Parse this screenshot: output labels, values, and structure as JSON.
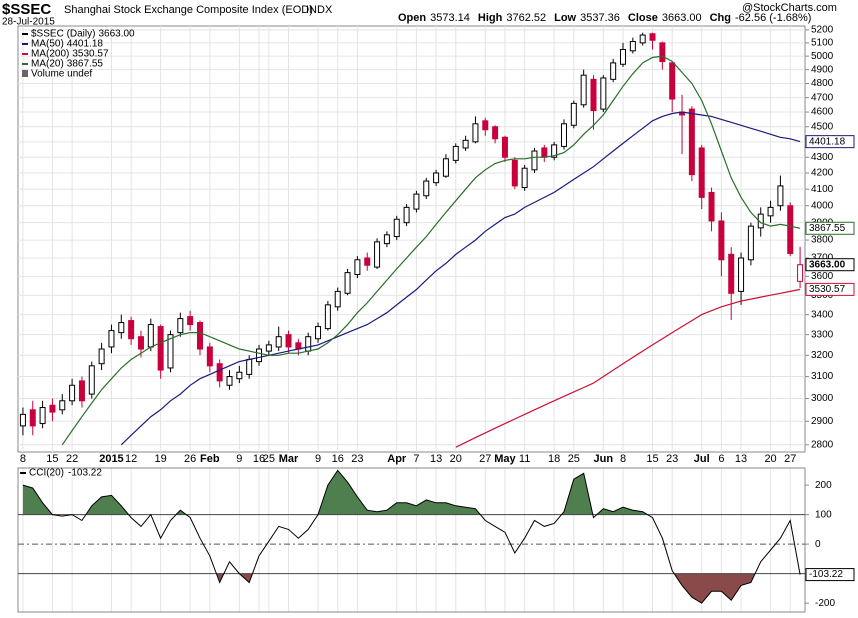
{
  "header": {
    "symbol": "$SSEC",
    "name": "Shanghai Stock Exchange Composite Index (EOD)",
    "exchange": "INDX",
    "date": "28-Jul-2015",
    "quote": [
      {
        "label": "Open",
        "value": "3573.14"
      },
      {
        "label": "High",
        "value": "3762.52"
      },
      {
        "label": "Low",
        "value": "3537.36"
      },
      {
        "label": "Close",
        "value": "3663.00"
      },
      {
        "label": "Chg",
        "value": "-62.56 (-1.68%)"
      }
    ],
    "source": "@StockCharts.com"
  },
  "chart_data": [
    {
      "type": "candlestick",
      "log_scale": true,
      "grid": true,
      "categories": [
        "8",
        null,
        null,
        "15",
        null,
        "22",
        null,
        null,
        null,
        "2015",
        null,
        "12",
        null,
        null,
        "19",
        null,
        null,
        "26",
        null,
        "Feb",
        null,
        null,
        "9",
        null,
        "16",
        "25",
        null,
        "Mar",
        null,
        null,
        "9",
        null,
        "16",
        null,
        "23",
        null,
        null,
        null,
        "Apr",
        null,
        "7",
        null,
        "13",
        null,
        "20",
        null,
        null,
        "27",
        null,
        "May",
        null,
        "11",
        null,
        null,
        "18",
        null,
        "25",
        null,
        null,
        "Jun",
        null,
        "8",
        null,
        null,
        "15",
        null,
        "23",
        null,
        null,
        "Jul",
        null,
        "6",
        null,
        "13",
        null,
        null,
        "20",
        null,
        "27",
        null
      ],
      "name": "$SSEC (Daily)",
      "last_label": "3663.00",
      "up_color": "#000000",
      "down_color": "#c8003c",
      "volume_note": "Volume undef",
      "open": [
        2880,
        2950,
        2890,
        2970,
        2950,
        2990,
        3080,
        3020,
        3160,
        3240,
        3310,
        3370,
        3290,
        3240,
        3340,
        3140,
        3310,
        3390,
        3360,
        3240,
        3160,
        3060,
        3090,
        3110,
        3170,
        3220,
        3240,
        3300,
        3260,
        3220,
        3280,
        3330,
        3440,
        3510,
        3610,
        3700,
        3650,
        3780,
        3820,
        3900,
        3980,
        4060,
        4140,
        4180,
        4280,
        4360,
        4400,
        4540,
        4500,
        4430,
        4280,
        4110,
        4220,
        4360,
        4300,
        4370,
        4510,
        4650,
        4830,
        4620,
        4830,
        4940,
        5040,
        5100,
        5170,
        5100,
        4950,
        4600,
        4620,
        4360,
        4080,
        3910,
        3720,
        3520,
        3690,
        3870,
        3940,
        4000,
        4000,
        3573.14
      ],
      "high": [
        2960,
        2990,
        2990,
        3000,
        3020,
        3090,
        3100,
        3170,
        3260,
        3350,
        3400,
        3390,
        3320,
        3380,
        3350,
        3320,
        3410,
        3420,
        3370,
        3260,
        3180,
        3130,
        3150,
        3200,
        3250,
        3270,
        3340,
        3320,
        3280,
        3310,
        3360,
        3470,
        3540,
        3640,
        3710,
        3730,
        3810,
        3850,
        3940,
        4010,
        4090,
        4170,
        4220,
        4320,
        4390,
        4440,
        4570,
        4560,
        4510,
        4440,
        4300,
        4250,
        4360,
        4380,
        4400,
        4550,
        4680,
        4900,
        4860,
        4860,
        4980,
        5100,
        5140,
        5178,
        5178,
        5110,
        4960,
        4720,
        4640,
        4380,
        4110,
        3960,
        3760,
        3730,
        3900,
        3990,
        4030,
        4184,
        4020,
        3762.52
      ],
      "low": [
        2840,
        2840,
        2870,
        2900,
        2930,
        2970,
        2960,
        3000,
        3130,
        3210,
        3280,
        3250,
        3190,
        3220,
        3090,
        3120,
        3290,
        3320,
        3200,
        3120,
        3050,
        3040,
        3070,
        3090,
        3150,
        3200,
        3220,
        3210,
        3200,
        3200,
        3260,
        3320,
        3420,
        3500,
        3590,
        3630,
        3640,
        3760,
        3800,
        3880,
        3960,
        4040,
        4120,
        4170,
        4260,
        4340,
        4390,
        4440,
        4390,
        4270,
        4100,
        4090,
        4200,
        4270,
        4280,
        4350,
        4490,
        4630,
        4480,
        4600,
        4810,
        4920,
        5020,
        5080,
        5050,
        4900,
        4600,
        4320,
        4150,
        3980,
        3850,
        3600,
        3373,
        3450,
        3660,
        3820,
        3900,
        3970,
        3710,
        3537.36
      ],
      "close": [
        2930,
        2880,
        2960,
        2940,
        2990,
        3060,
        2990,
        3150,
        3230,
        3320,
        3360,
        3280,
        3230,
        3350,
        3130,
        3300,
        3380,
        3350,
        3230,
        3150,
        3080,
        3100,
        3120,
        3180,
        3230,
        3250,
        3290,
        3240,
        3230,
        3290,
        3340,
        3450,
        3520,
        3620,
        3690,
        3660,
        3790,
        3830,
        3920,
        3990,
        4070,
        4150,
        4200,
        4290,
        4370,
        4410,
        4520,
        4480,
        4420,
        4300,
        4120,
        4230,
        4340,
        4300,
        4380,
        4520,
        4660,
        4860,
        4610,
        4840,
        4950,
        5050,
        5110,
        5160,
        5120,
        4960,
        4690,
        4580,
        4190,
        4050,
        3910,
        3690,
        3510,
        3700,
        3880,
        3950,
        3990,
        4120,
        3725,
        3663
      ],
      "series": [
        {
          "name": "MA(50)",
          "color": "#1a1a80",
          "last_label": "4401.18",
          "values": [
            null,
            null,
            null,
            null,
            null,
            null,
            null,
            null,
            null,
            null,
            2800,
            2840,
            2880,
            2920,
            2950,
            2990,
            3020,
            3060,
            3090,
            3110,
            3130,
            3150,
            3170,
            3180,
            3190,
            3200,
            3210,
            3220,
            3230,
            3240,
            3250,
            3270,
            3290,
            3310,
            3330,
            3350,
            3380,
            3410,
            3450,
            3490,
            3530,
            3580,
            3630,
            3670,
            3720,
            3760,
            3800,
            3850,
            3890,
            3930,
            3950,
            3990,
            4020,
            4050,
            4080,
            4120,
            4160,
            4200,
            4240,
            4290,
            4340,
            4390,
            4440,
            4490,
            4540,
            4570,
            4590,
            4600,
            4590,
            4580,
            4570,
            4550,
            4530,
            4510,
            4490,
            4470,
            4450,
            4430,
            4420,
            4401.18
          ]
        },
        {
          "name": "MA(200)",
          "color": "#cc1133",
          "last_label": "3530.57",
          "values": [
            null,
            null,
            null,
            null,
            null,
            null,
            null,
            null,
            null,
            null,
            null,
            null,
            null,
            null,
            null,
            null,
            null,
            null,
            null,
            null,
            null,
            null,
            null,
            null,
            null,
            null,
            null,
            null,
            null,
            null,
            null,
            null,
            null,
            null,
            null,
            null,
            null,
            null,
            null,
            null,
            null,
            null,
            null,
            null,
            2790,
            2810,
            2830,
            2850,
            2870,
            2890,
            2910,
            2930,
            2950,
            2970,
            2990,
            3010,
            3030,
            3050,
            3070,
            3100,
            3130,
            3160,
            3190,
            3220,
            3250,
            3280,
            3310,
            3340,
            3370,
            3400,
            3420,
            3440,
            3455,
            3470,
            3480,
            3490,
            3500,
            3510,
            3520,
            3530.57
          ]
        },
        {
          "name": "MA(20)",
          "color": "#2a6e2a",
          "last_label": "3867.55",
          "values": [
            null,
            null,
            null,
            null,
            2800,
            2860,
            2920,
            2980,
            3040,
            3090,
            3140,
            3180,
            3210,
            3240,
            3260,
            3280,
            3300,
            3310,
            3310,
            3290,
            3270,
            3250,
            3230,
            3220,
            3210,
            3200,
            3200,
            3210,
            3210,
            3220,
            3230,
            3260,
            3300,
            3350,
            3410,
            3460,
            3520,
            3580,
            3640,
            3700,
            3760,
            3820,
            3890,
            3960,
            4030,
            4100,
            4170,
            4220,
            4260,
            4280,
            4290,
            4290,
            4300,
            4300,
            4310,
            4330,
            4380,
            4450,
            4510,
            4580,
            4680,
            4780,
            4870,
            4950,
            4990,
            5000,
            4960,
            4880,
            4800,
            4680,
            4520,
            4340,
            4170,
            4050,
            3960,
            3900,
            3880,
            3890,
            3880,
            3867.55
          ]
        }
      ],
      "ylim": [
        2770,
        5230
      ],
      "yticks": [
        2800,
        2900,
        3000,
        3100,
        3200,
        3300,
        3400,
        3500,
        3600,
        3700,
        3800,
        3900,
        4000,
        4100,
        4200,
        4300,
        4400,
        4500,
        4600,
        4700,
        4800,
        4900,
        5000,
        5100,
        5200
      ]
    },
    {
      "type": "line",
      "title": "CCI(20)",
      "last_label": "-103.22",
      "color": "#000000",
      "overbought": 100,
      "oversold": -100,
      "zero_line": 0,
      "overbought_color": "#4f7f4f",
      "oversold_color": "#8a4a4a",
      "grid": true,
      "series": [
        {
          "name": "CCI(20)",
          "values": [
            200,
            190,
            140,
            100,
            95,
            100,
            80,
            130,
            160,
            165,
            130,
            90,
            60,
            100,
            20,
            80,
            115,
            90,
            20,
            -40,
            -130,
            -60,
            -100,
            -130,
            -40,
            10,
            60,
            50,
            20,
            50,
            100,
            200,
            250,
            210,
            160,
            115,
            110,
            115,
            140,
            140,
            130,
            150,
            140,
            140,
            130,
            125,
            120,
            80,
            60,
            40,
            -30,
            20,
            80,
            60,
            70,
            110,
            220,
            240,
            90,
            120,
            110,
            125,
            115,
            110,
            90,
            20,
            -90,
            -140,
            -180,
            -200,
            -160,
            -160,
            -190,
            -140,
            -130,
            -60,
            -20,
            20,
            80,
            -103.22
          ]
        }
      ],
      "ylim": [
        -230,
        258
      ],
      "yticks": [
        -200,
        -100,
        0,
        100,
        200
      ]
    }
  ]
}
